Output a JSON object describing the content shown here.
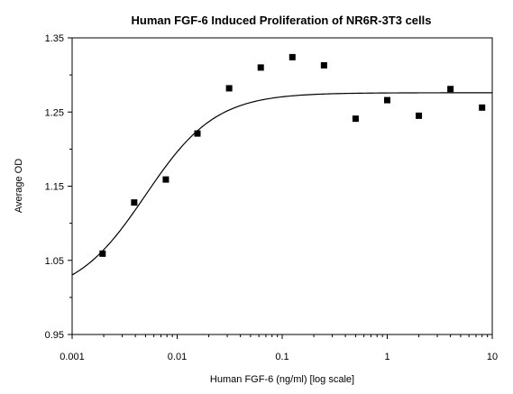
{
  "chart_data": {
    "type": "scatter",
    "title": "Human FGF-6 Induced Proliferation of NR6R-3T3 cells",
    "xlabel": "Human FGF-6 (ng/ml) [log scale]",
    "ylabel": "Average OD",
    "x_scale": "log",
    "xlim": [
      0.001,
      10
    ],
    "ylim": [
      0.95,
      1.35
    ],
    "x_ticks": [
      0.001,
      0.01,
      0.1,
      1,
      10
    ],
    "x_tick_labels": [
      "0.001",
      "0.01",
      "0.1",
      "1",
      "10"
    ],
    "y_ticks": [
      0.95,
      1.05,
      1.15,
      1.25,
      1.35
    ],
    "y_tick_labels": [
      "0.95",
      "1.05",
      "1.15",
      "1.25",
      "1.35"
    ],
    "grid": false,
    "points": {
      "x": [
        0.00195,
        0.0039,
        0.0078,
        0.0156,
        0.03125,
        0.0625,
        0.125,
        0.25,
        0.5,
        1,
        2,
        4,
        8
      ],
      "y": [
        1.059,
        1.128,
        1.159,
        1.221,
        1.282,
        1.31,
        1.324,
        1.313,
        1.241,
        1.266,
        1.245,
        1.281,
        1.256
      ]
    },
    "fit_curve": {
      "bottom": 1.0,
      "top": 1.276,
      "ec50": 0.005,
      "hill": 1.3
    }
  }
}
